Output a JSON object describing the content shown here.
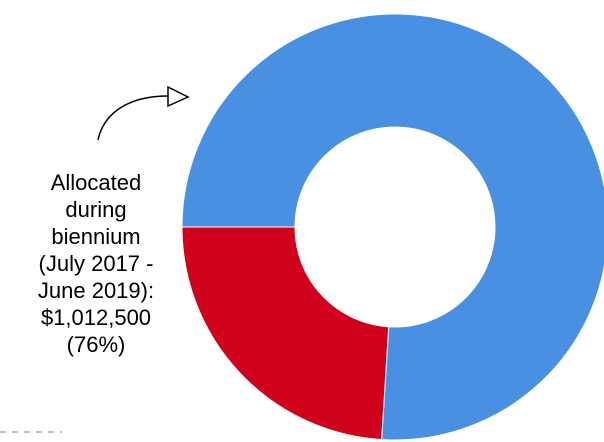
{
  "chart_data": {
    "type": "donut",
    "categories": [
      null,
      null
    ],
    "values": [
      76,
      24
    ],
    "colors": [
      "#4a90e2",
      "#d0021b"
    ],
    "annotation": [
      "Allocated",
      "during",
      "biennium",
      "(July 2017 -",
      "June 2019):",
      "$1,012,500",
      "(76%)"
    ]
  }
}
